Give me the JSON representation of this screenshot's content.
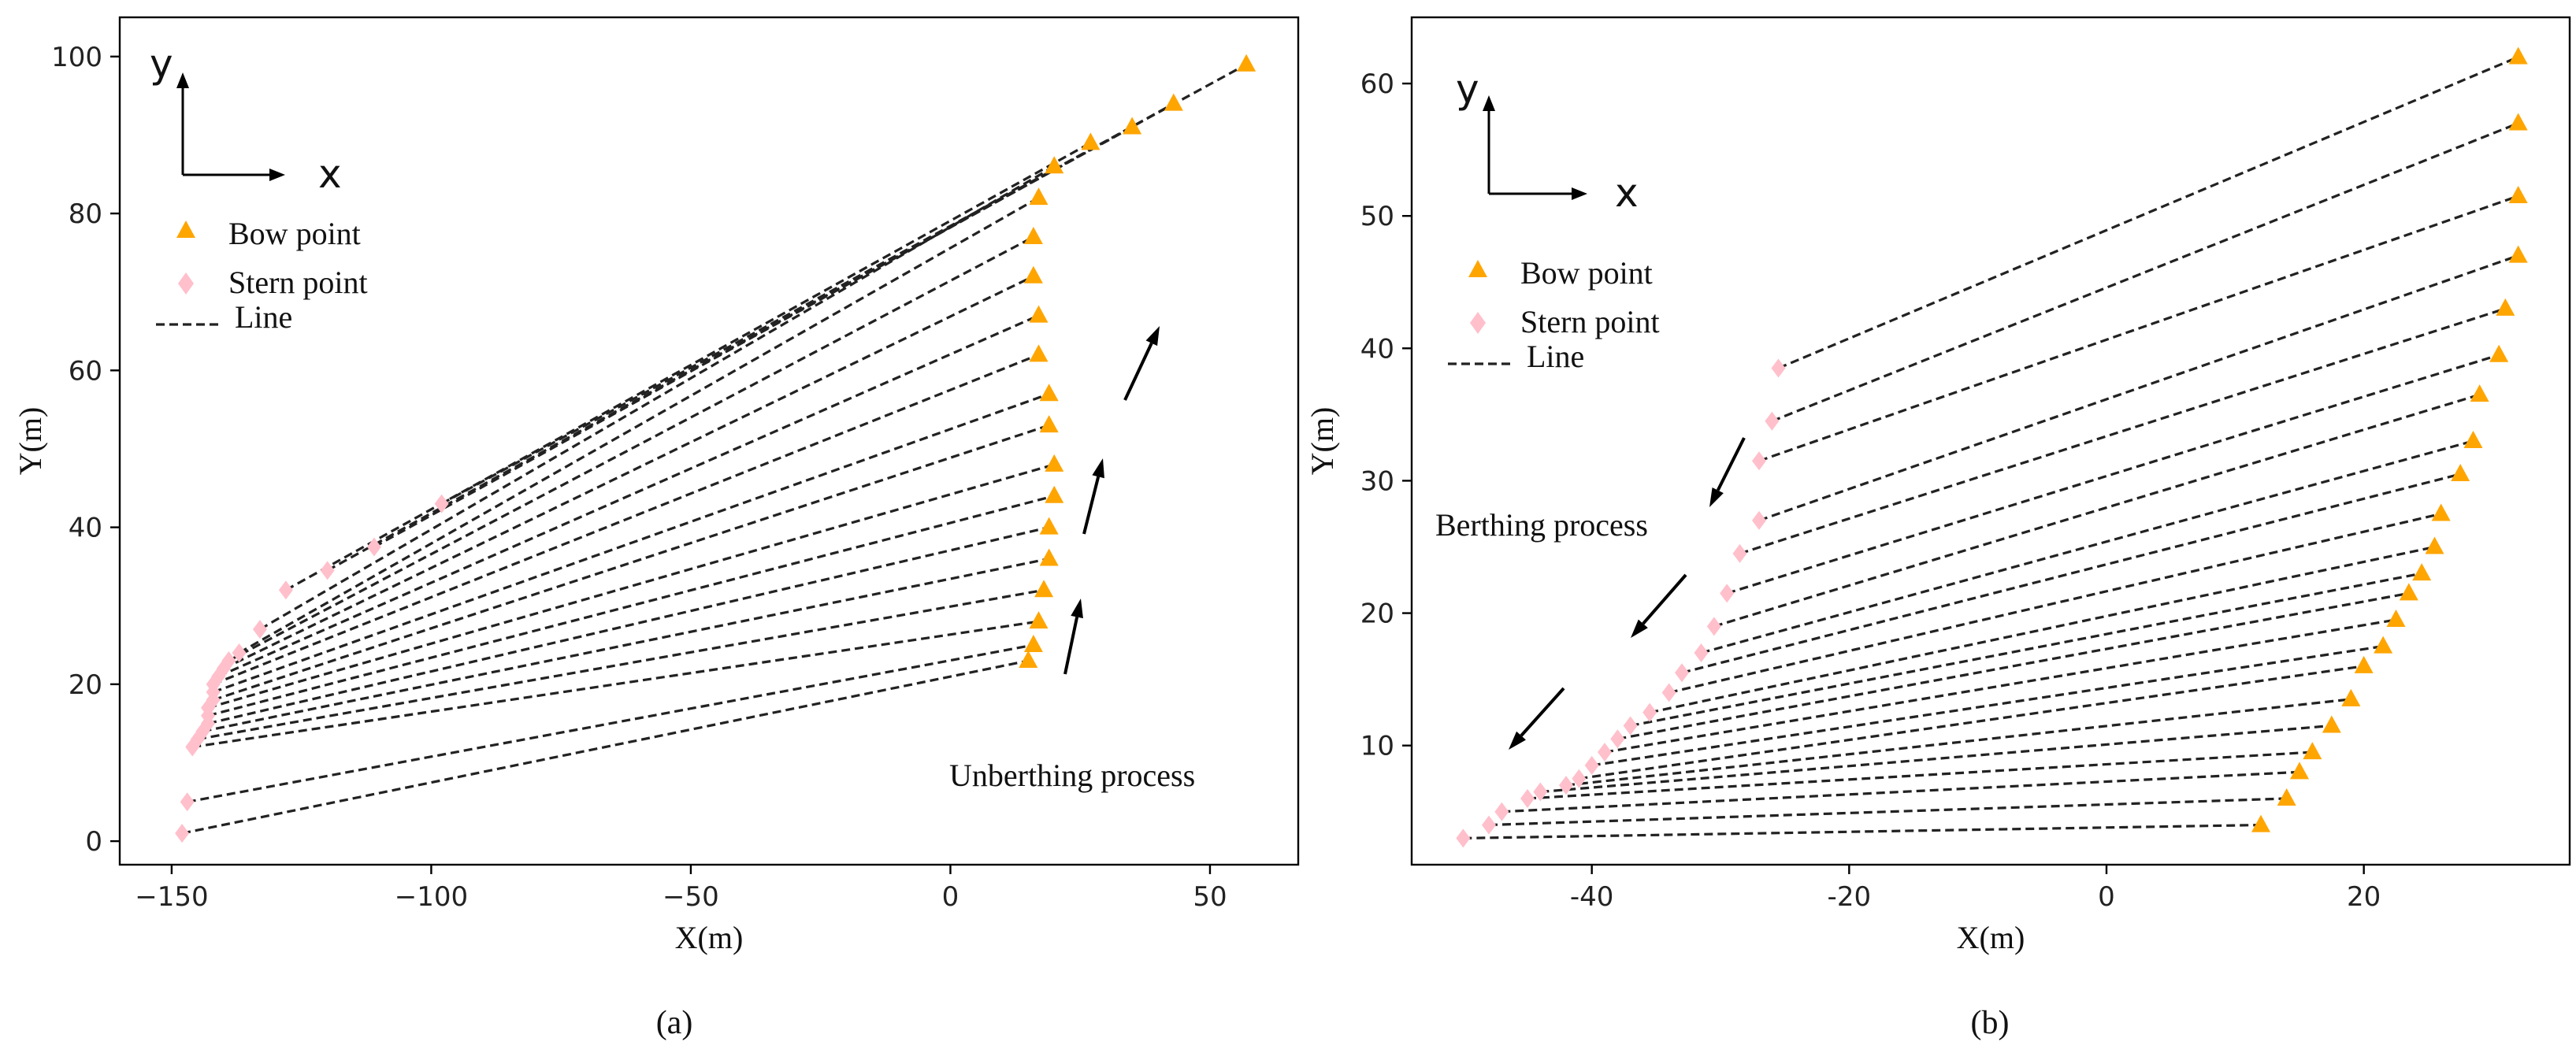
{
  "chart_data": [
    {
      "type": "scatter",
      "panel": "a",
      "caption": "(a)",
      "xlabel": "X(m)",
      "ylabel": "Y(m)",
      "xlim": [
        -160,
        67
      ],
      "ylim": [
        -3,
        105
      ],
      "xticks": [
        -150,
        -100,
        -50,
        0,
        50
      ],
      "xtick_labels": [
        "−150",
        "−100",
        "−50",
        "0",
        "50"
      ],
      "yticks": [
        0,
        20,
        40,
        60,
        80,
        100
      ],
      "ytick_labels": [
        "0",
        "20",
        "40",
        "60",
        "80",
        "100"
      ],
      "grid": false,
      "legend_position": "upper-left",
      "legend": {
        "bow": "Bow point",
        "stern": "Stern point",
        "line": "Line"
      },
      "coord_axes": {
        "x": "x",
        "y": "y"
      },
      "annotation": "Unberthing process",
      "colors": {
        "bow": "#FFA500",
        "stern": "#FFC0CB",
        "line": "#222222"
      },
      "series": [
        {
          "name": "Bow point",
          "marker": "triangle",
          "points": [
            [
              15,
              23
            ],
            [
              16,
              25
            ],
            [
              17,
              28
            ],
            [
              18,
              32
            ],
            [
              19,
              36
            ],
            [
              19,
              40
            ],
            [
              20,
              44
            ],
            [
              20,
              48
            ],
            [
              19,
              53
            ],
            [
              19,
              57
            ],
            [
              17,
              62
            ],
            [
              17,
              67
            ],
            [
              16,
              72
            ],
            [
              16,
              77
            ],
            [
              17,
              82
            ],
            [
              20,
              86
            ],
            [
              27,
              89
            ],
            [
              35,
              91
            ],
            [
              43,
              94
            ],
            [
              57,
              99
            ]
          ]
        },
        {
          "name": "Stern point",
          "marker": "diamond",
          "points": [
            [
              -148,
              1
            ],
            [
              -147,
              5
            ],
            [
              -146,
              12
            ],
            [
              -145,
              13
            ],
            [
              -144,
              14
            ],
            [
              -143,
              15
            ],
            [
              -143,
              16
            ],
            [
              -143,
              17
            ],
            [
              -142,
              18
            ],
            [
              -142,
              19
            ],
            [
              -142,
              20
            ],
            [
              -141,
              21
            ],
            [
              -140,
              22
            ],
            [
              -139,
              23
            ],
            [
              -137,
              24
            ],
            [
              -133,
              27
            ],
            [
              -128,
              32
            ],
            [
              -120,
              34.5
            ],
            [
              -111,
              37.5
            ],
            [
              -98,
              43
            ]
          ]
        }
      ]
    },
    {
      "type": "scatter",
      "panel": "b",
      "caption": "(b)",
      "xlabel": "X(m)",
      "ylabel": "Y(m)",
      "xlim": [
        -54,
        36
      ],
      "ylim": [
        1,
        65
      ],
      "xticks": [
        -40,
        -20,
        0,
        20
      ],
      "xtick_labels": [
        "-40",
        "-20",
        "0",
        "20"
      ],
      "yticks": [
        10,
        20,
        30,
        40,
        50,
        60
      ],
      "ytick_labels": [
        "10",
        "20",
        "30",
        "40",
        "50",
        "60"
      ],
      "grid": false,
      "legend_position": "upper-left",
      "legend": {
        "bow": "Bow point",
        "stern": "Stern point",
        "line": "Line"
      },
      "coord_axes": {
        "x": "x",
        "y": "y"
      },
      "annotation": "Berthing process",
      "colors": {
        "bow": "#FFA500",
        "stern": "#FFC0CB",
        "line": "#222222"
      },
      "series": [
        {
          "name": "Bow point",
          "marker": "triangle",
          "points": [
            [
              12,
              4
            ],
            [
              14,
              6
            ],
            [
              15,
              8
            ],
            [
              16,
              9.5
            ],
            [
              17.5,
              11.5
            ],
            [
              19,
              13.5
            ],
            [
              20,
              16
            ],
            [
              21.5,
              17.5
            ],
            [
              22.5,
              19.5
            ],
            [
              23.5,
              21.5
            ],
            [
              24.5,
              23
            ],
            [
              25.5,
              25
            ],
            [
              26,
              27.5
            ],
            [
              27.5,
              30.5
            ],
            [
              28.5,
              33
            ],
            [
              29,
              36.5
            ],
            [
              30.5,
              39.5
            ],
            [
              31,
              43
            ],
            [
              32,
              47
            ],
            [
              32,
              51.5
            ],
            [
              32,
              57
            ],
            [
              32,
              62
            ]
          ]
        },
        {
          "name": "Stern point",
          "marker": "diamond",
          "points": [
            [
              -50,
              3
            ],
            [
              -48,
              4
            ],
            [
              -47,
              5
            ],
            [
              -45,
              6
            ],
            [
              -44,
              6.5
            ],
            [
              -42,
              7
            ],
            [
              -41,
              7.5
            ],
            [
              -40,
              8.5
            ],
            [
              -39,
              9.5
            ],
            [
              -38,
              10.5
            ],
            [
              -37,
              11.5
            ],
            [
              -35.5,
              12.5
            ],
            [
              -34,
              14
            ],
            [
              -33,
              15.5
            ],
            [
              -31.5,
              17
            ],
            [
              -30.5,
              19
            ],
            [
              -29.5,
              21.5
            ],
            [
              -28.5,
              24.5
            ],
            [
              -27,
              27
            ],
            [
              -27,
              31.5
            ],
            [
              -26,
              34.5
            ],
            [
              -25.5,
              38.5
            ]
          ]
        }
      ]
    }
  ]
}
